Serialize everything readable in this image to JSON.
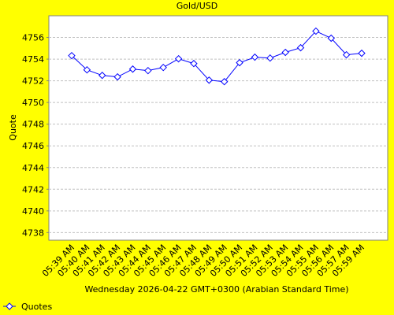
{
  "chart_data": {
    "type": "line",
    "title": "Gold/USD",
    "x_label": "Wednesday 2026-04-22 GMT+0300 (Arabian Standard Time)",
    "y_label": "Quote",
    "categories": [
      "05:39 AM",
      "05:40 AM",
      "05:41 AM",
      "05:42 AM",
      "05:43 AM",
      "05:44 AM",
      "05:45 AM",
      "05:46 AM",
      "05:47 AM",
      "05:48 AM",
      "05:49 AM",
      "05:50 AM",
      "05:51 AM",
      "05:52 AM",
      "05:53 AM",
      "05:54 AM",
      "05:55 AM",
      "05:56 AM",
      "05:57 AM",
      "05:59 AM"
    ],
    "series": [
      {
        "name": "Quotes",
        "color": "#0000ff",
        "values": [
          4754.32,
          4753.01,
          4752.5,
          4752.36,
          4753.08,
          4752.94,
          4753.23,
          4754.03,
          4753.59,
          4752.06,
          4751.92,
          4753.67,
          4754.18,
          4754.1,
          4754.62,
          4755.05,
          4756.58,
          4755.93,
          4754.4,
          4754.54
        ]
      }
    ],
    "ylim": [
      4737.3,
      4758
    ],
    "yticks": [
      4738,
      4740,
      4742,
      4744,
      4746,
      4748,
      4750,
      4752,
      4754,
      4756
    ],
    "grid": true,
    "legend": "bottom-left"
  }
}
